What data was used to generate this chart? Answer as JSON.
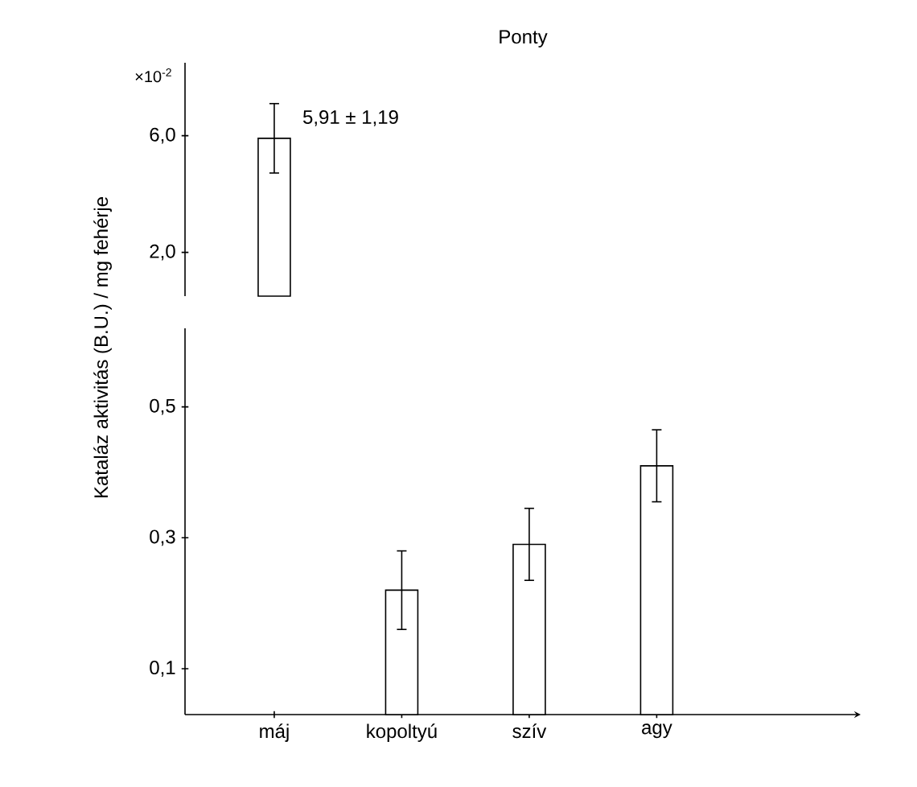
{
  "chart_data": [
    {
      "type": "bar",
      "title": "Ponty",
      "categories": [
        "máj",
        "kopoltyú",
        "szív",
        "agy"
      ],
      "values": [
        5.91,
        null,
        null,
        null
      ],
      "errors": [
        1.19,
        null,
        null,
        null
      ],
      "color": "#ffffff",
      "ylim": [
        0.5,
        8.5
      ],
      "yticks": [
        {
          "value": 2.0,
          "label": "2,0"
        },
        {
          "value": 6.0,
          "label": "6,0"
        }
      ],
      "tick_labels": "y",
      "annotations": [
        {
          "text": "5,91 ± 1,19",
          "x": "máj",
          "y": 5.91
        },
        "×10$^{-2}$"
      ]
    },
    {
      "type": "bar",
      "categories": [
        "máj",
        "kopoltyú",
        "szív",
        "agy"
      ],
      "values": [
        null,
        0.22,
        0.29,
        0.41
      ],
      "errors": [
        null,
        0.06,
        0.055,
        0.055
      ],
      "color": "#ffffff",
      "ylim": [
        0.03,
        0.62
      ],
      "yticks": [
        {
          "value": 0.1,
          "label": "0,1"
        },
        {
          "value": 0.3,
          "label": "0,3"
        },
        {
          "value": 0.5,
          "label": "0,5"
        }
      ],
      "ylabel": "Kataláz aktivitás (B.U.) / mg fehérje"
    }
  ]
}
